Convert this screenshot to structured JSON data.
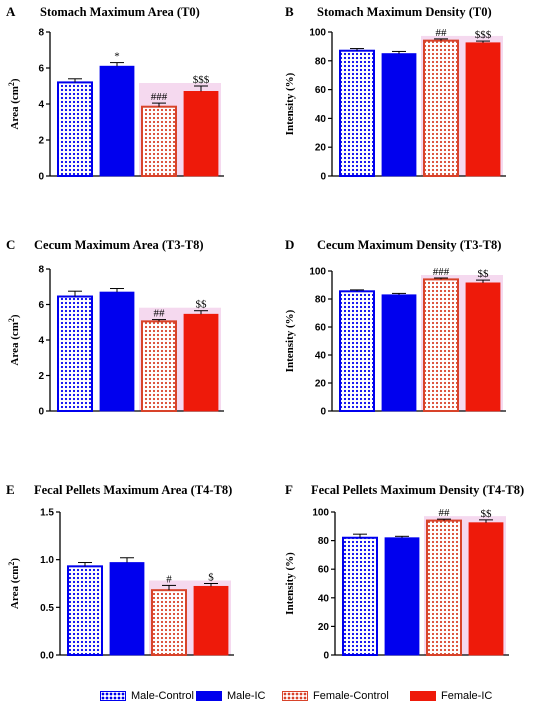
{
  "chart_data": [
    {
      "panel": "A",
      "type": "bar",
      "title": "Stomach Maximum Area (T0)",
      "ylabel_main": "Area (cm",
      "ylabel_sup": "2",
      "ylabel_end": ")",
      "ylim": [
        0,
        8
      ],
      "yticks": [
        "0",
        "2",
        "4",
        "6",
        "8"
      ],
      "categories": [
        "Male-Control",
        "Male-IC",
        "Female-Control",
        "Female-IC"
      ],
      "values": [
        5.2,
        6.1,
        3.85,
        4.7
      ],
      "errors": [
        0.2,
        0.2,
        0.2,
        0.3
      ],
      "annotations": [
        "",
        "*",
        "###",
        "$$$"
      ]
    },
    {
      "panel": "B",
      "type": "bar",
      "title": "Stomach Maximum Density (T0)",
      "ylabel_main": "Intensity (%)",
      "ylabel_sup": "",
      "ylabel_end": "",
      "ylim": [
        0,
        100
      ],
      "yticks": [
        "0",
        "20",
        "40",
        "60",
        "80",
        "100"
      ],
      "categories": [
        "Male-Control",
        "Male-IC",
        "Female-Control",
        "Female-IC"
      ],
      "values": [
        87,
        85,
        94,
        92.5
      ],
      "errors": [
        1.5,
        1.5,
        1.2,
        1.2
      ],
      "annotations": [
        "",
        "",
        "##",
        "$$$"
      ]
    },
    {
      "panel": "C",
      "type": "bar",
      "title": "Cecum Maximum Area (T3-T8)",
      "ylabel_main": "Area (cm",
      "ylabel_sup": "2",
      "ylabel_end": ")",
      "ylim": [
        0,
        8
      ],
      "yticks": [
        "0",
        "2",
        "4",
        "6",
        "8"
      ],
      "categories": [
        "Male-Control",
        "Male-IC",
        "Female-Control",
        "Female-IC"
      ],
      "values": [
        6.45,
        6.7,
        5.05,
        5.45
      ],
      "errors": [
        0.3,
        0.2,
        0.1,
        0.2
      ],
      "annotations": [
        "",
        "",
        "##",
        "$$"
      ]
    },
    {
      "panel": "D",
      "type": "bar",
      "title": "Cecum Maximum Density (T3-T8)",
      "ylabel_main": "Intensity (%)",
      "ylabel_sup": "",
      "ylabel_end": "",
      "ylim": [
        0,
        100
      ],
      "yticks": [
        "0",
        "20",
        "40",
        "60",
        "80",
        "100"
      ],
      "categories": [
        "Male-Control",
        "Male-IC",
        "Female-Control",
        "Female-IC"
      ],
      "values": [
        85.5,
        83,
        94,
        91.5
      ],
      "errors": [
        1.0,
        1.0,
        1.0,
        2.0
      ],
      "annotations": [
        "",
        "",
        "###",
        "$$"
      ]
    },
    {
      "panel": "E",
      "type": "bar",
      "title": "Fecal Pellets Maximum Area (T4-T8)",
      "ylabel_main": "Area (cm",
      "ylabel_sup": "2",
      "ylabel_end": ")",
      "ylim": [
        0,
        1.5
      ],
      "yticks": [
        "0.0",
        "0.5",
        "1.0",
        "1.5"
      ],
      "categories": [
        "Male-Control",
        "Male-IC",
        "Female-Control",
        "Female-IC"
      ],
      "values": [
        0.93,
        0.97,
        0.68,
        0.72
      ],
      "errors": [
        0.04,
        0.05,
        0.05,
        0.03
      ],
      "annotations": [
        "",
        "",
        "#",
        "$"
      ]
    },
    {
      "panel": "F",
      "type": "bar",
      "title": "Fecal Pellets Maximum Density (T4-T8)",
      "ylabel_main": "Intensity (%)",
      "ylabel_sup": "",
      "ylabel_end": "",
      "ylim": [
        0,
        100
      ],
      "yticks": [
        "0",
        "20",
        "40",
        "60",
        "80",
        "100"
      ],
      "categories": [
        "Male-Control",
        "Male-IC",
        "Female-Control",
        "Female-IC"
      ],
      "values": [
        82,
        82,
        94,
        92.5
      ],
      "errors": [
        2.5,
        1.0,
        1.0,
        2.0
      ],
      "annotations": [
        "",
        "",
        "##",
        "$$"
      ]
    }
  ],
  "legend": [
    {
      "label": "Male-Control",
      "style": "blue-checker"
    },
    {
      "label": "Male-IC",
      "style": "blue-solid"
    },
    {
      "label": "Female-Control",
      "style": "red-checker"
    },
    {
      "label": "Female-IC",
      "style": "red-solid"
    }
  ],
  "colors": {
    "male_blue": "#0000ee",
    "female_red": "#ee1a0a",
    "female_control_red": "#d8432a",
    "highlight_pink": "#f3d2ec"
  }
}
